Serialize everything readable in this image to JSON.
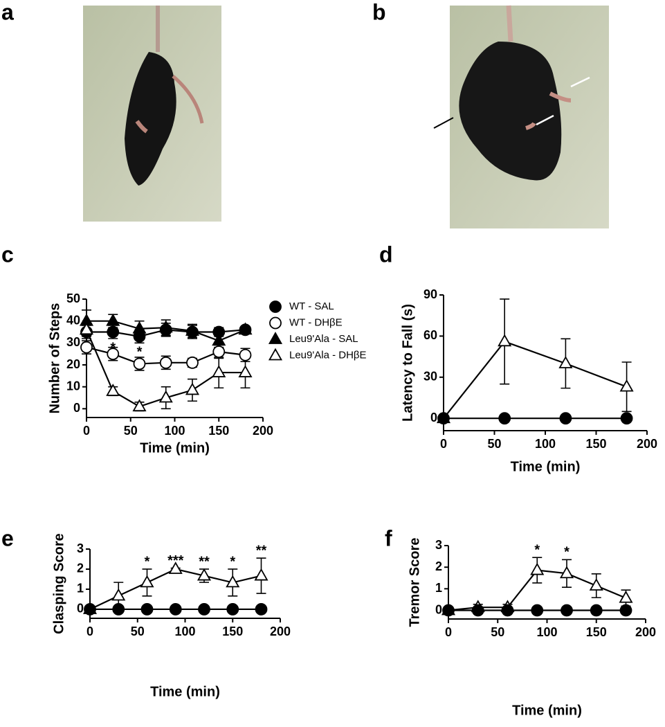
{
  "photo_panels": [
    {
      "label": "a"
    },
    {
      "label": "b"
    }
  ],
  "chart_data": [
    {
      "type": "line",
      "panel_label": "c",
      "x_label": "Time (min)",
      "y_label": "Number of Steps",
      "x": [
        0,
        30,
        60,
        90,
        120,
        150,
        180
      ],
      "xlim": [
        0,
        200
      ],
      "xticks": [
        0,
        50,
        100,
        150,
        200
      ],
      "ylim": [
        -4,
        50
      ],
      "yticks": [
        0,
        10,
        20,
        30,
        40,
        50
      ],
      "legend": "right",
      "annotation_position": "below",
      "annotations": [
        null,
        "*",
        "*",
        null,
        null,
        null,
        null
      ],
      "series": [
        {
          "name": "WT - SAL",
          "color": "#000000",
          "marker": "circle",
          "filled": true,
          "values": [
            35,
            35,
            33,
            36,
            35,
            35,
            36
          ],
          "errors": [
            3,
            3,
            3,
            3,
            3,
            2,
            1.5
          ]
        },
        {
          "name": "WT - DHβE",
          "color": "#000000",
          "marker": "circle",
          "filled": false,
          "values": [
            28,
            25,
            20.5,
            21,
            21,
            26,
            24.5
          ],
          "errors": [
            3,
            3,
            3,
            3,
            2,
            3,
            3
          ]
        },
        {
          "name": "Leu9'Ala - SAL",
          "color": "#000000",
          "marker": "triangle",
          "filled": true,
          "values": [
            40,
            40,
            36.5,
            37,
            35.5,
            31,
            36
          ],
          "errors": [
            5,
            3,
            3.5,
            3.5,
            3,
            3,
            1.5
          ]
        },
        {
          "name": "Leu9'Ala - DHβE",
          "color": "#000000",
          "marker": "triangle",
          "filled": false,
          "values": [
            36,
            8,
            1,
            5,
            8.5,
            16.5,
            16.5
          ],
          "errors": [
            3,
            2,
            2,
            5,
            5,
            7,
            7
          ]
        }
      ]
    },
    {
      "type": "line",
      "panel_label": "d",
      "x_label": "Time (min)",
      "y_label": "Latency to Fall (s)",
      "x": [
        0,
        60,
        120,
        180
      ],
      "xlim": [
        0,
        200
      ],
      "xticks": [
        0,
        50,
        100,
        150,
        200
      ],
      "ylim": [
        -9,
        90
      ],
      "yticks": [
        0,
        30,
        60,
        90
      ],
      "series": [
        {
          "color": "#000000",
          "marker": "triangle",
          "filled": false,
          "values": [
            0,
            56,
            40,
            23
          ],
          "errors": [
            0,
            31,
            18,
            18
          ]
        },
        {
          "color": "#000000",
          "marker": "circle",
          "filled": true,
          "values": [
            0,
            0,
            0,
            0
          ]
        }
      ]
    },
    {
      "type": "line",
      "panel_label": "e",
      "x_label": "Time (min)",
      "y_label": "Clasping Score",
      "x": [
        0,
        30,
        60,
        90,
        120,
        150,
        180
      ],
      "xlim": [
        0,
        200
      ],
      "xticks": [
        0,
        50,
        100,
        150,
        200
      ],
      "ylim": [
        -0.45,
        3
      ],
      "yticks": [
        0,
        1,
        2,
        3
      ],
      "annotation_position": "above",
      "annotations": [
        null,
        null,
        "*",
        "***",
        "**",
        "*",
        "**"
      ],
      "series": [
        {
          "color": "#000000",
          "marker": "triangle",
          "filled": false,
          "values": [
            0,
            0.67,
            1.33,
            2,
            1.67,
            1.33,
            1.67
          ],
          "errors": [
            0,
            0.67,
            0.67,
            0.05,
            0.33,
            0.67,
            0.88
          ]
        },
        {
          "color": "#000000",
          "marker": "circle",
          "filled": true,
          "values": [
            0,
            0,
            0,
            0,
            0,
            0,
            0
          ]
        }
      ]
    },
    {
      "type": "line",
      "panel_label": "f",
      "x_label": "Time (min)",
      "y_label": "Tremor Score",
      "x": [
        0,
        30,
        60,
        90,
        120,
        150,
        180
      ],
      "xlim": [
        0,
        200
      ],
      "xticks": [
        0,
        50,
        100,
        150,
        200
      ],
      "ylim": [
        -0.4,
        3
      ],
      "yticks": [
        0,
        1,
        2,
        3
      ],
      "annotation_position": "above",
      "annotations": [
        null,
        null,
        null,
        "*",
        "*",
        null,
        null
      ],
      "series": [
        {
          "color": "#000000",
          "marker": "triangle",
          "filled": false,
          "values": [
            0,
            0.14,
            0.14,
            1.86,
            1.71,
            1.14,
            0.57
          ],
          "errors": [
            0,
            0.14,
            0.14,
            0.59,
            0.64,
            0.55,
            0.37
          ]
        },
        {
          "color": "#000000",
          "marker": "circle",
          "filled": true,
          "values": [
            0,
            0,
            0,
            0,
            0,
            0,
            0
          ]
        }
      ]
    }
  ]
}
